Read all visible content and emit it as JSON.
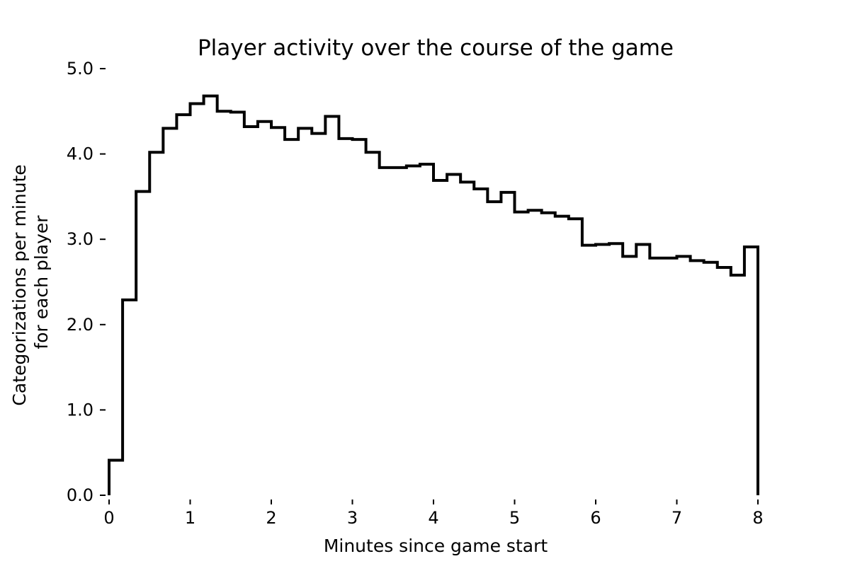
{
  "chart_data": {
    "type": "step",
    "title": "Player activity over the course of the game",
    "xlabel": "Minutes since game start",
    "ylabel_lines": [
      "Categorizations per minute",
      "for each player"
    ],
    "xlim": [
      0,
      8
    ],
    "ylim": [
      0,
      5
    ],
    "grid": false,
    "xticks": [
      0,
      1,
      2,
      3,
      4,
      5,
      6,
      7,
      8
    ],
    "xtick_labels": [
      "0",
      "1",
      "2",
      "3",
      "4",
      "5",
      "6",
      "7",
      "8"
    ],
    "yticks": [
      0,
      1,
      2,
      3,
      4,
      5
    ],
    "ytick_labels": [
      "0.0",
      "1.0",
      "2.0",
      "3.0",
      "4.0",
      "5.0"
    ],
    "bin_edges": [
      0,
      0.1667,
      0.3333,
      0.5,
      0.6667,
      0.8333,
      1.0,
      1.1667,
      1.3333,
      1.5,
      1.6667,
      1.8333,
      2.0,
      2.1667,
      2.3333,
      2.5,
      2.6667,
      2.8333,
      3.0,
      3.1667,
      3.3333,
      3.5,
      3.6667,
      3.8333,
      4.0,
      4.1667,
      4.3333,
      4.5,
      4.6667,
      4.8333,
      5.0,
      5.1667,
      5.3333,
      5.5,
      5.6667,
      5.8333,
      6.0,
      6.1667,
      6.3333,
      6.5,
      6.6667,
      6.8333,
      7.0,
      7.1667,
      7.3333,
      7.5,
      7.6667,
      7.8333,
      8.0
    ],
    "values": [
      0.41,
      2.29,
      3.56,
      4.02,
      4.3,
      4.46,
      4.59,
      4.68,
      4.5,
      4.49,
      4.32,
      4.38,
      4.31,
      4.17,
      4.3,
      4.24,
      4.44,
      4.18,
      4.17,
      4.02,
      3.84,
      3.84,
      3.86,
      3.88,
      3.69,
      3.76,
      3.67,
      3.59,
      3.44,
      3.55,
      3.32,
      3.34,
      3.31,
      3.27,
      3.24,
      2.93,
      2.94,
      2.95,
      2.8,
      2.94,
      2.78,
      2.78,
      2.8,
      2.75,
      2.73,
      2.67,
      2.58,
      2.91
    ]
  }
}
